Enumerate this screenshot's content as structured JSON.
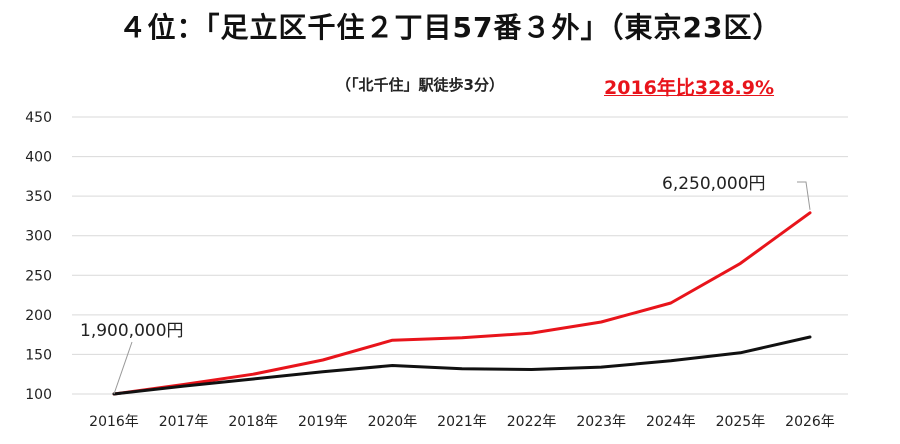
{
  "title": "４位：「足立区千住２丁目57番３外」（東京23区）",
  "subtitle": "（「北千住」駅徒歩3分）",
  "ratio_label": "2016年比328.9%",
  "chart_data": {
    "type": "line",
    "categories": [
      "2016年",
      "2017年",
      "2018年",
      "2019年",
      "2020年",
      "2021年",
      "2022年",
      "2023年",
      "2024年",
      "2025年",
      "2026年"
    ],
    "y_ticks": [
      "100",
      "150",
      "200",
      "250",
      "300",
      "350",
      "400",
      "450"
    ],
    "ylim": [
      100,
      450
    ],
    "grid": true,
    "series": [
      {
        "color": "#e8141b",
        "values": [
          100,
          112,
          125,
          143,
          168,
          171,
          177,
          191,
          215,
          265,
          328.9
        ]
      },
      {
        "color": "#111111",
        "values": [
          100,
          110,
          119,
          128,
          136,
          132,
          131,
          134,
          142,
          152,
          172
        ]
      }
    ],
    "annotations": [
      {
        "text": "1,900,000円",
        "series": 1,
        "index": 0
      },
      {
        "text": "6,250,000円",
        "series": 0,
        "index": 10
      }
    ]
  }
}
